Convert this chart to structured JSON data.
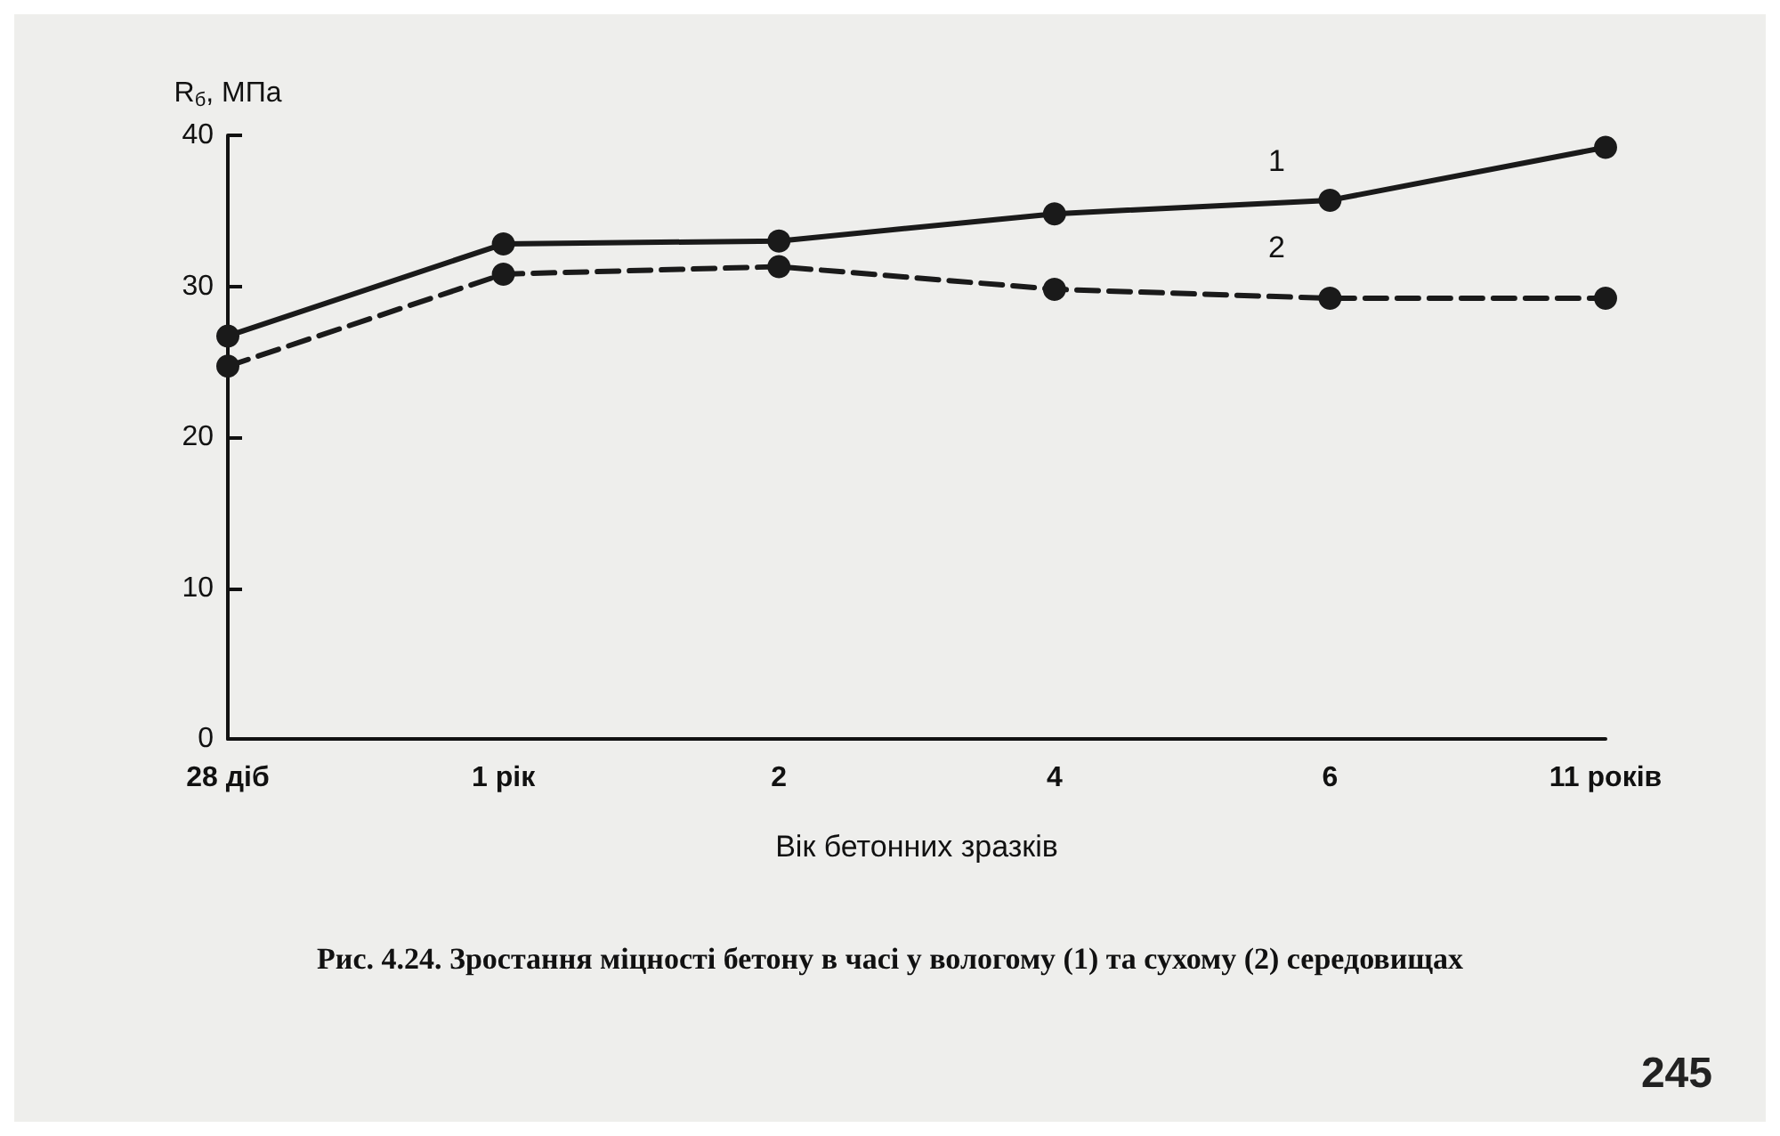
{
  "chart_data": {
    "type": "line",
    "title": "Рис. 4.24. Зростання міцності бетону в часі у вологому (1) та сухому (2) середовищах",
    "xlabel": "Вік бетонних зразків",
    "ylabel": "R$_{б}$, МПа",
    "categories": [
      "28 діб",
      "1 рік",
      "2",
      "4",
      "6",
      "11 років"
    ],
    "series": [
      {
        "name": "1",
        "color": "#1a1a1a",
        "line_style": "solid",
        "values": [
          26.7,
          32.8,
          33,
          34.8,
          35.7,
          39.2
        ]
      },
      {
        "name": "2",
        "color": "#1a1a1a",
        "line_style": "dashed",
        "values": [
          24.7,
          30.8,
          31.3,
          29.8,
          29.2,
          29.2
        ]
      }
    ],
    "ylim": [
      0,
      40
    ],
    "yticks": [
      0,
      10,
      20,
      30,
      40
    ],
    "grid": false,
    "legend": false,
    "marker": "circle",
    "annotations": [
      "245"
    ]
  }
}
